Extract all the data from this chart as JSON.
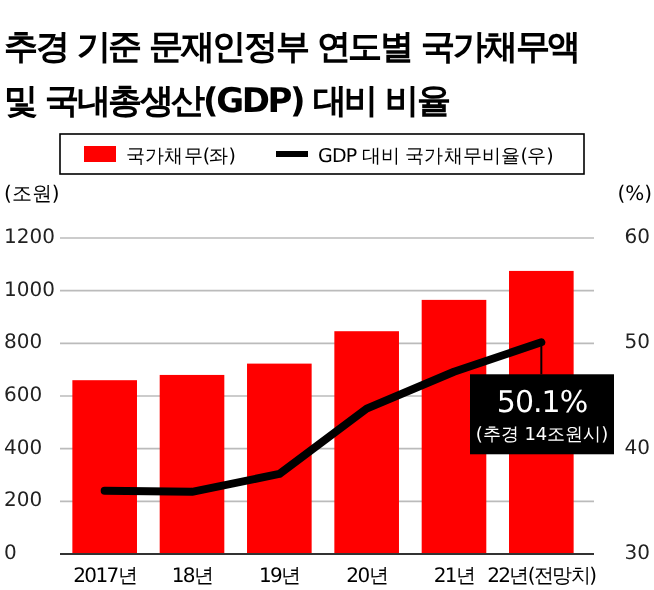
{
  "chart_data": {
    "type": "bar",
    "title": "추경 기준 문재인정부 연도별 국가채무액\n및 국내총생산(GDP) 대비 비율",
    "categories": [
      "2017년",
      "18년",
      "19년",
      "20년",
      "21년",
      "22년(전망치)"
    ],
    "series": [
      {
        "name": "국가채무(좌)",
        "color": "#ff0000",
        "values": [
          660,
          680,
          723,
          846,
          965,
          1075
        ]
      },
      {
        "name": "GDP 대비 국가채무비율(우)",
        "type": "line",
        "axis": "y2",
        "color": "#000000",
        "values": [
          36.0,
          35.9,
          37.6,
          43.8,
          47.3,
          50.1
        ]
      }
    ],
    "ylabel": "(조원)",
    "y2label": "(%)",
    "ylim": [
      0,
      1200
    ],
    "yticks": [
      0,
      200,
      400,
      600,
      800,
      1000,
      1200
    ],
    "y2lim": [
      30,
      60
    ],
    "y2ticks": [
      30,
      40,
      50,
      60
    ],
    "grid": "y",
    "legend": "top",
    "marker": "none",
    "line_style": "solid",
    "annotations": [
      "50.1%\n(추경 14조원시)"
    ]
  }
}
